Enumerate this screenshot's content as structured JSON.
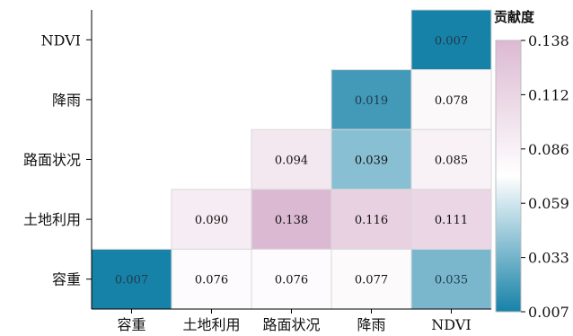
{
  "chart_data": {
    "type": "heatmap",
    "x_categories": [
      "容重",
      "土地利用",
      "路面状况",
      "降雨",
      "NDVI"
    ],
    "y_categories": [
      "NDVI",
      "降雨",
      "路面状况",
      "土地利用",
      "容重"
    ],
    "cells": [
      {
        "row": "NDVI",
        "col": "NDVI",
        "value": 0.007
      },
      {
        "row": "降雨",
        "col": "降雨",
        "value": 0.019
      },
      {
        "row": "降雨",
        "col": "NDVI",
        "value": 0.078
      },
      {
        "row": "路面状况",
        "col": "路面状况",
        "value": 0.094
      },
      {
        "row": "路面状况",
        "col": "降雨",
        "value": 0.039
      },
      {
        "row": "路面状况",
        "col": "NDVI",
        "value": 0.085
      },
      {
        "row": "土地利用",
        "col": "土地利用",
        "value": 0.09
      },
      {
        "row": "土地利用",
        "col": "路面状况",
        "value": 0.138
      },
      {
        "row": "土地利用",
        "col": "降雨",
        "value": 0.116
      },
      {
        "row": "土地利用",
        "col": "NDVI",
        "value": 0.111
      },
      {
        "row": "容重",
        "col": "容重",
        "value": 0.007
      },
      {
        "row": "容重",
        "col": "土地利用",
        "value": 0.076
      },
      {
        "row": "容重",
        "col": "路面状况",
        "value": 0.076
      },
      {
        "row": "容重",
        "col": "降雨",
        "value": 0.077
      },
      {
        "row": "容重",
        "col": "NDVI",
        "value": 0.035
      }
    ],
    "colorbar": {
      "title": "贡献度",
      "ticks": [
        "0.138",
        "0.112",
        "0.086",
        "0.059",
        "0.033",
        "0.007"
      ],
      "range": [
        0.007,
        0.138
      ],
      "colors": {
        "low": "#1782a8",
        "mid": "#ffffff",
        "high": "#dcb9d2"
      }
    }
  }
}
